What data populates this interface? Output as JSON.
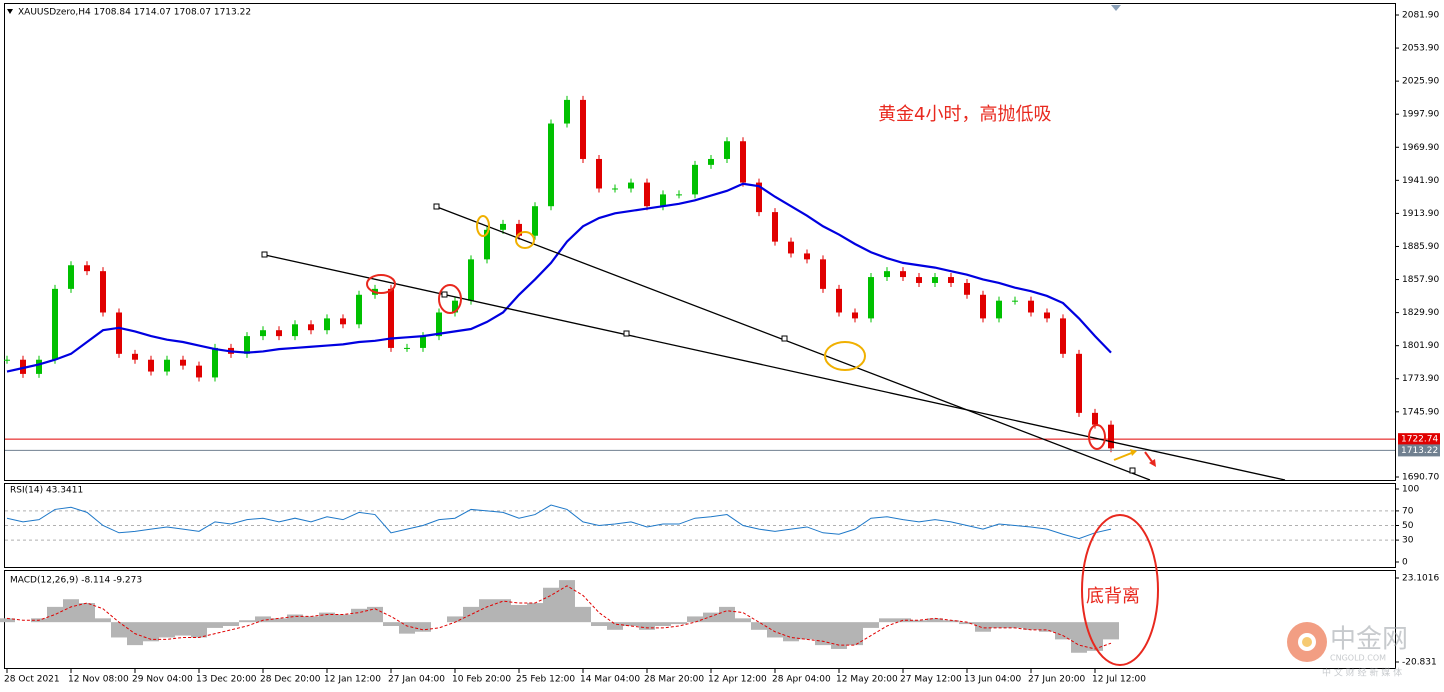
{
  "chart_data": [
    {
      "type": "candlestick",
      "title": "XAUUSDzero,H4  1708.84 1714.07 1708.07 1713.22",
      "annotations": [
        "黄金4小时，高抛低吸",
        "底背离"
      ],
      "categories": [
        "28 Oct 2021",
        null,
        null,
        null,
        "12 Nov 08:00",
        null,
        null,
        null,
        "29 Nov 04:00",
        null,
        null,
        null,
        "13 Dec 20:00",
        null,
        null,
        null,
        "28 Dec 20:00",
        null,
        null,
        null,
        "12 Jan 12:00",
        null,
        null,
        null,
        "27 Jan 04:00",
        null,
        null,
        null,
        "10 Feb 20:00",
        null,
        null,
        null,
        "25 Feb 12:00",
        null,
        null,
        null,
        "14 Mar 04:00",
        null,
        null,
        null,
        "28 Mar 20:00",
        null,
        null,
        null,
        "12 Apr 12:00",
        null,
        null,
        null,
        "28 Apr 04:00",
        null,
        null,
        null,
        "12 May 20:00",
        null,
        null,
        null,
        "27 May 12:00",
        null,
        null,
        null,
        "13 Jun 04:00",
        null,
        null,
        null,
        "27 Jun 20:00",
        null,
        null,
        null,
        "12 Jul 12:00",
        null
      ],
      "series": [
        {
          "color": "#00c000",
          "down_color": "#e00000",
          "values": [
            1790,
            1778,
            1790,
            1850,
            1870,
            1865,
            1830,
            1795,
            1790,
            1780,
            1790,
            1785,
            1775,
            1800,
            1795,
            1810,
            1815,
            1810,
            1820,
            1815,
            1825,
            1820,
            1845,
            1850,
            1800,
            1800,
            1810,
            1830,
            1840,
            1875,
            1900,
            1905,
            1895,
            1920,
            1990,
            2010,
            1960,
            1935,
            1935,
            1940,
            1920,
            1930,
            1930,
            1955,
            1960,
            1975,
            1940,
            1915,
            1890,
            1880,
            1875,
            1850,
            1830,
            1825,
            1860,
            1865,
            1860,
            1855,
            1860,
            1855,
            1845,
            1825,
            1840,
            1840,
            1830,
            1825,
            1795,
            1745,
            1735,
            1715
          ]
        },
        {
          "color": "#0000e0",
          "values": [
            1780,
            1783,
            1786,
            1790,
            1795,
            1805,
            1815,
            1817,
            1814,
            1810,
            1807,
            1805,
            1802,
            1799,
            1797,
            1796,
            1797,
            1799,
            1800,
            1801,
            1802,
            1803,
            1805,
            1806,
            1808,
            1809,
            1810,
            1812,
            1814,
            1816,
            1822,
            1830,
            1845,
            1858,
            1872,
            1890,
            1903,
            1910,
            1914,
            1916,
            1918,
            1920,
            1922,
            1925,
            1929,
            1933,
            1939,
            1937,
            1928,
            1920,
            1912,
            1903,
            1896,
            1888,
            1881,
            1876,
            1872,
            1870,
            1868,
            1865,
            1862,
            1858,
            1855,
            1851,
            1848,
            1844,
            1838,
            1825,
            1810,
            1796
          ]
        }
      ],
      "price_lines": [
        {
          "value": 1722.74,
          "color": "#e00000"
        },
        {
          "value": 1713.22,
          "color": "#708090"
        }
      ],
      "ylim": [
        1690.7,
        2081.9
      ],
      "yticks": [
        {
          "value": 2081.9,
          "label": "2081.90"
        },
        {
          "value": 2053.9,
          "label": "2053.90"
        },
        {
          "value": 2025.9,
          "label": "2025.90"
        },
        {
          "value": 1997.9,
          "label": "1997.90"
        },
        {
          "value": 1969.9,
          "label": "1969.90"
        },
        {
          "value": 1941.9,
          "label": "1941.90"
        },
        {
          "value": 1913.9,
          "label": "1913.90"
        },
        {
          "value": 1885.9,
          "label": "1885.90"
        },
        {
          "value": 1857.9,
          "label": "1857.90"
        },
        {
          "value": 1829.9,
          "label": "1829.90"
        },
        {
          "value": 1801.9,
          "label": "1801.90"
        },
        {
          "value": 1773.9,
          "label": "1773.90"
        },
        {
          "value": 1745.9,
          "label": "1745.90"
        },
        {
          "value": 1690.7,
          "label": "1690.70"
        }
      ]
    },
    {
      "type": "line",
      "title": "RSI(14) 43.3411",
      "color": "#1e78c8",
      "values": [
        60,
        55,
        58,
        72,
        75,
        68,
        50,
        40,
        42,
        45,
        48,
        45,
        42,
        55,
        52,
        58,
        60,
        55,
        60,
        55,
        62,
        58,
        68,
        65,
        40,
        45,
        50,
        58,
        60,
        72,
        70,
        68,
        60,
        65,
        78,
        72,
        55,
        50,
        52,
        55,
        48,
        52,
        52,
        60,
        62,
        65,
        50,
        45,
        42,
        45,
        48,
        40,
        38,
        45,
        60,
        62,
        58,
        55,
        58,
        55,
        50,
        45,
        52,
        50,
        48,
        45,
        38,
        32,
        40,
        45
      ],
      "ylim": [
        0,
        100
      ],
      "yticks": [
        100,
        70,
        50,
        30,
        0
      ]
    },
    {
      "type": "bar",
      "title": "MACD(12,26,9) -8.114 -9.273",
      "color": "#b4b4b4",
      "signal_color": "#e00000",
      "values": [
        2,
        0,
        2,
        8,
        12,
        10,
        2,
        -8,
        -12,
        -10,
        -8,
        -7,
        -8,
        -3,
        -2,
        1,
        3,
        2,
        4,
        3,
        5,
        4,
        7,
        8,
        -2,
        -6,
        -5,
        0,
        3,
        8,
        12,
        12,
        9,
        10,
        18,
        22,
        8,
        -2,
        -4,
        -2,
        -4,
        -2,
        -1,
        3,
        5,
        8,
        2,
        -4,
        -8,
        -10,
        -9,
        -12,
        -14,
        -12,
        -3,
        2,
        2,
        1,
        2,
        1,
        -1,
        -5,
        -3,
        -3,
        -4,
        -5,
        -9,
        -16,
        -15,
        -9
      ],
      "signal": [
        2,
        1,
        1,
        4,
        8,
        10,
        7,
        0,
        -6,
        -9,
        -9,
        -8,
        -8,
        -6,
        -4,
        -2,
        1,
        2,
        3,
        3,
        4,
        4,
        5,
        7,
        3,
        -2,
        -4,
        -3,
        0,
        4,
        8,
        11,
        10,
        10,
        14,
        19,
        14,
        5,
        -1,
        -2,
        -3,
        -3,
        -2,
        0,
        3,
        6,
        5,
        0,
        -5,
        -8,
        -9,
        -10,
        -12,
        -12,
        -7,
        -2,
        1,
        1,
        2,
        1,
        0,
        -3,
        -3,
        -3,
        -4,
        -4,
        -7,
        -12,
        -14,
        -11
      ],
      "ylim": [
        -20.831,
        23.1016
      ],
      "yticks": [
        23.1016,
        -20.831
      ]
    }
  ],
  "watermark": {
    "name": "中金网",
    "site": "CNGOLD.COM",
    "tagline": "中 文 财 经 新 媒 体"
  }
}
